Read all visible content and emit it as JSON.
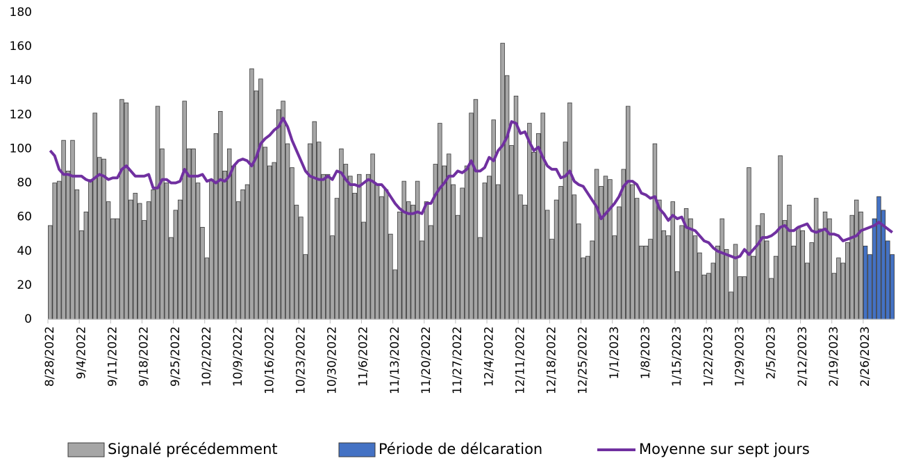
{
  "chart_data": {
    "type": "bar",
    "categories": [
      "8/28/2022",
      null,
      null,
      null,
      null,
      null,
      null,
      "9/4/2022",
      null,
      null,
      null,
      null,
      null,
      null,
      "9/11/2022",
      null,
      null,
      null,
      null,
      null,
      null,
      "9/18/2022",
      null,
      null,
      null,
      null,
      null,
      null,
      "9/25/2022",
      null,
      null,
      null,
      null,
      null,
      null,
      "10/2/2022",
      null,
      null,
      null,
      null,
      null,
      null,
      "10/9/2022",
      null,
      null,
      null,
      null,
      null,
      null,
      "10/16/2022",
      null,
      null,
      null,
      null,
      null,
      null,
      "10/23/2022",
      null,
      null,
      null,
      null,
      null,
      null,
      "10/30/2022",
      null,
      null,
      null,
      null,
      null,
      null,
      "11/6/2022",
      null,
      null,
      null,
      null,
      null,
      null,
      "11/13/2022",
      null,
      null,
      null,
      null,
      null,
      null,
      "11/20/2022",
      null,
      null,
      null,
      null,
      null,
      null,
      "11/27/2022",
      null,
      null,
      null,
      null,
      null,
      null,
      "12/4/2022",
      null,
      null,
      null,
      null,
      null,
      null,
      "12/11/2022",
      null,
      null,
      null,
      null,
      null,
      null,
      "12/18/2022",
      null,
      null,
      null,
      null,
      null,
      null,
      "12/25/2022",
      null,
      null,
      null,
      null,
      null,
      null,
      "1/1/2023",
      null,
      null,
      null,
      null,
      null,
      null,
      "1/8/2023",
      null,
      null,
      null,
      null,
      null,
      null,
      "1/15/2023",
      null,
      null,
      null,
      null,
      null,
      null,
      "1/22/2023",
      null,
      null,
      null,
      null,
      null,
      null,
      "1/29/2023",
      null,
      null,
      null,
      null,
      null,
      null,
      "2/5/2023",
      null,
      null,
      null,
      null,
      null,
      null,
      "2/12/2023",
      null,
      null,
      null,
      null,
      null,
      null,
      "2/19/2023",
      null,
      null,
      null,
      null,
      null,
      null,
      "2/26/2023",
      null,
      null,
      null,
      null,
      null,
      null
    ],
    "series": [
      {
        "name": "Signalé précédemment",
        "type": "bar",
        "color": "#a6a6a6",
        "values": [
          55,
          80,
          81,
          105,
          87,
          105,
          76,
          52,
          63,
          82,
          121,
          95,
          94,
          69,
          59,
          59,
          129,
          127,
          70,
          74,
          68,
          58,
          69,
          76,
          125,
          100,
          80,
          48,
          64,
          70,
          128,
          100,
          100,
          80,
          54,
          36,
          82,
          109,
          122,
          87,
          100,
          90,
          69,
          76,
          79,
          147,
          134,
          141,
          101,
          90,
          92,
          123,
          128,
          103,
          89,
          67,
          60,
          38,
          103,
          116,
          104,
          85,
          85,
          49,
          71,
          100,
          91,
          84,
          74,
          85,
          57,
          85,
          97,
          79,
          72,
          76,
          50,
          29,
          63,
          81,
          69,
          67,
          81,
          46,
          69,
          55,
          91,
          115,
          90,
          97,
          79,
          61,
          77,
          90,
          121,
          129,
          48,
          80,
          84,
          117,
          79,
          162,
          143,
          102,
          131,
          73,
          67,
          115,
          98,
          109,
          121,
          64,
          47,
          70,
          78,
          104,
          127,
          73,
          56,
          36,
          37,
          46,
          88,
          78,
          84,
          82,
          49,
          66,
          88,
          125,
          79,
          71,
          43,
          43,
          47,
          103,
          70,
          52,
          49,
          69,
          28,
          55,
          65,
          59,
          49,
          39,
          26,
          27,
          33,
          43,
          59,
          41,
          16,
          44,
          25,
          25,
          89,
          37,
          55,
          62,
          46,
          24,
          37,
          96,
          58,
          67,
          43,
          54,
          52,
          33,
          45,
          71,
          53,
          63,
          59,
          27,
          36,
          33,
          45,
          61,
          70,
          63,
          null,
          null,
          null,
          null,
          null,
          null,
          null
        ]
      },
      {
        "name": "Période de délcaration",
        "type": "bar",
        "color": "#4472c4",
        "values": [
          null,
          null,
          null,
          null,
          null,
          null,
          null,
          null,
          null,
          null,
          null,
          null,
          null,
          null,
          null,
          null,
          null,
          null,
          null,
          null,
          null,
          null,
          null,
          null,
          null,
          null,
          null,
          null,
          null,
          null,
          null,
          null,
          null,
          null,
          null,
          null,
          null,
          null,
          null,
          null,
          null,
          null,
          null,
          null,
          null,
          null,
          null,
          null,
          null,
          null,
          null,
          null,
          null,
          null,
          null,
          null,
          null,
          null,
          null,
          null,
          null,
          null,
          null,
          null,
          null,
          null,
          null,
          null,
          null,
          null,
          null,
          null,
          null,
          null,
          null,
          null,
          null,
          null,
          null,
          null,
          null,
          null,
          null,
          null,
          null,
          null,
          null,
          null,
          null,
          null,
          null,
          null,
          null,
          null,
          null,
          null,
          null,
          null,
          null,
          null,
          null,
          null,
          null,
          null,
          null,
          null,
          null,
          null,
          null,
          null,
          null,
          null,
          null,
          null,
          null,
          null,
          null,
          null,
          null,
          null,
          null,
          null,
          null,
          null,
          null,
          null,
          null,
          null,
          null,
          null,
          null,
          null,
          null,
          null,
          null,
          null,
          null,
          null,
          null,
          null,
          null,
          null,
          null,
          null,
          null,
          null,
          null,
          null,
          null,
          null,
          null,
          null,
          null,
          null,
          null,
          null,
          null,
          null,
          null,
          null,
          null,
          null,
          null,
          null,
          null,
          null,
          null,
          null,
          null,
          null,
          null,
          null,
          null,
          null,
          null,
          null,
          null,
          null,
          null,
          null,
          null,
          null,
          43,
          38,
          59,
          72,
          64,
          46,
          38
        ]
      },
      {
        "name": "Moyenne sur sept jours",
        "type": "line",
        "color": "#7030a0",
        "values": [
          99,
          96,
          88,
          85,
          85,
          84,
          84,
          84,
          82,
          81,
          83,
          85,
          84,
          82,
          83,
          83,
          88,
          90,
          87,
          84,
          84,
          84,
          85,
          77,
          77,
          82,
          82,
          80,
          80,
          81,
          88,
          84,
          84,
          84,
          85,
          81,
          82,
          80,
          82,
          81,
          84,
          90,
          93,
          94,
          93,
          90,
          95,
          103,
          106,
          108,
          111,
          113,
          118,
          113,
          105,
          99,
          93,
          87,
          84,
          83,
          82,
          82,
          84,
          82,
          87,
          86,
          82,
          79,
          79,
          78,
          80,
          82,
          81,
          79,
          79,
          76,
          72,
          68,
          65,
          63,
          62,
          62,
          63,
          62,
          68,
          68,
          73,
          77,
          80,
          84,
          84,
          87,
          86,
          88,
          93,
          87,
          87,
          89,
          95,
          93,
          99,
          102,
          107,
          116,
          115,
          109,
          110,
          104,
          99,
          101,
          95,
          90,
          88,
          88,
          83,
          84,
          87,
          81,
          79,
          78,
          74,
          70,
          66,
          59,
          62,
          65,
          68,
          72,
          78,
          81,
          81,
          79,
          74,
          73,
          71,
          72,
          65,
          62,
          58,
          61,
          59,
          60,
          54,
          53,
          52,
          49,
          46,
          45,
          42,
          40,
          39,
          38,
          37,
          36,
          37,
          41,
          38,
          41,
          44,
          48,
          48,
          49,
          51,
          54,
          55,
          52,
          52,
          54,
          55,
          56,
          52,
          51,
          52,
          53,
          50,
          50,
          49,
          46,
          47,
          48,
          49,
          52,
          53,
          54,
          55,
          57,
          55,
          53,
          51
        ]
      }
    ],
    "ylim": [
      0,
      180
    ],
    "yticks": [
      0,
      20,
      40,
      60,
      80,
      100,
      120,
      140,
      160,
      180
    ]
  }
}
